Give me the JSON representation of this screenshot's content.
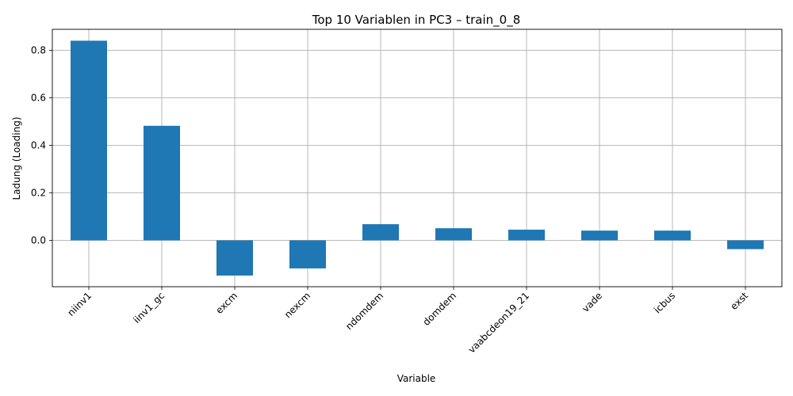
{
  "chart_data": {
    "type": "bar",
    "title": "Top 10 Variablen in PC3 – train_0_8",
    "xlabel": "Variable",
    "ylabel": "Ladung (Loading)",
    "categories": [
      "niinv1",
      "iinv1_gc",
      "excm",
      "nexcm",
      "ndomdem",
      "domdem",
      "vaabcdeon19_21",
      "vade",
      "icbus",
      "exst"
    ],
    "values": [
      0.84,
      0.482,
      -0.148,
      -0.118,
      0.068,
      0.051,
      0.045,
      0.041,
      0.041,
      -0.037
    ],
    "ylim": [
      -0.195,
      0.888
    ],
    "yticks": [
      0.0,
      0.2,
      0.4,
      0.6,
      0.8
    ],
    "ytick_labels": [
      "0.0",
      "0.2",
      "0.4",
      "0.6",
      "0.8"
    ],
    "grid": true,
    "bar_color": "#1f77b4"
  }
}
